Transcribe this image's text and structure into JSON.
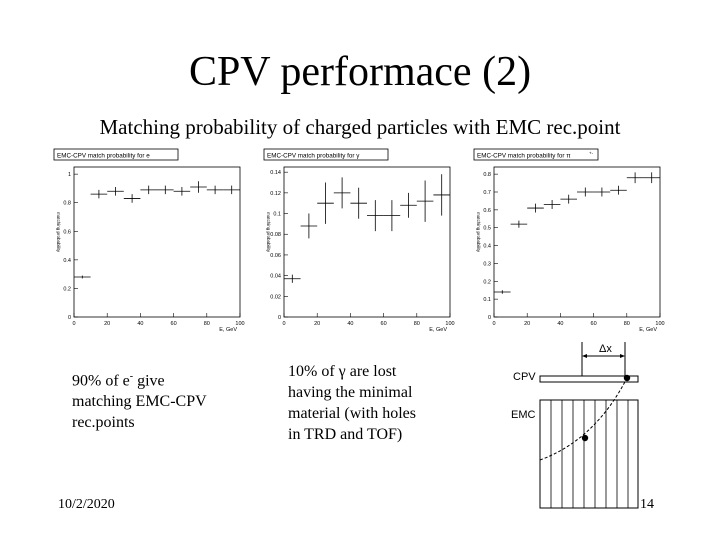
{
  "slide": {
    "title": "CPV performace (2)",
    "subtitle": "Matching probability of charged particles with EMC rec.point",
    "notes": {
      "electron": {
        "line1": "90% of e",
        "sup": "-",
        "line1b": " give",
        "line2": "matching EMC-CPV",
        "line3": "rec.points"
      },
      "gamma": {
        "line1": "10% of γ are lost",
        "line2": "having the minimal",
        "line3": "material (with holes",
        "line4": "in TRD and TOF)"
      }
    },
    "footer": {
      "date": "10/2/2020",
      "page": "14"
    },
    "diagram": {
      "dx_label": "Δx",
      "cpv_label": "CPV",
      "emc_label": "EMC"
    }
  },
  "chart_data": [
    {
      "type": "scatter",
      "title": "EMC-CPV match probability for e",
      "ylabel": "matching probability",
      "xlabel": "E, GeV",
      "xlim": [
        0,
        100
      ],
      "ylim": [
        0,
        1.05
      ],
      "xticks": [
        0,
        20,
        40,
        60,
        80,
        100
      ],
      "yticks": [
        0,
        0.2,
        0.4,
        0.6,
        0.8,
        1
      ],
      "ytick_labels": [
        "0",
        "0.2",
        "0.4",
        "0.6",
        "0.8",
        "1"
      ],
      "x": [
        5,
        15,
        25,
        35,
        45,
        55,
        65,
        75,
        85,
        95
      ],
      "y": [
        0.28,
        0.86,
        0.88,
        0.83,
        0.89,
        0.89,
        0.88,
        0.91,
        0.89,
        0.89
      ],
      "yerr": [
        0.01,
        0.03,
        0.03,
        0.03,
        0.03,
        0.03,
        0.03,
        0.04,
        0.03,
        0.03
      ],
      "xerr": 5
    },
    {
      "type": "scatter",
      "title": "EMC-CPV match probability for  γ",
      "ylabel": "matching probability",
      "xlabel": "E, GeV",
      "xlim": [
        0,
        100
      ],
      "ylim": [
        0,
        0.145
      ],
      "xticks": [
        0,
        20,
        40,
        60,
        80,
        100
      ],
      "yticks": [
        0,
        0.02,
        0.04,
        0.06,
        0.08,
        0.1,
        0.12,
        0.14
      ],
      "ytick_labels": [
        "0",
        "0.02",
        "0.04",
        "0.06",
        "0.08",
        "0.1",
        "0.12",
        "0.14"
      ],
      "x": [
        5,
        15,
        25,
        35,
        45,
        55,
        65,
        75,
        85,
        95
      ],
      "y": [
        0.037,
        0.088,
        0.11,
        0.12,
        0.11,
        0.098,
        0.098,
        0.108,
        0.112,
        0.118
      ],
      "yerr": [
        0.004,
        0.012,
        0.02,
        0.015,
        0.015,
        0.015,
        0.015,
        0.012,
        0.02,
        0.02
      ],
      "xerr": 5
    },
    {
      "type": "scatter",
      "title": "EMC-CPV match probability for  π",
      "title_sup": "+-",
      "ylabel": "matching probability",
      "xlabel": "E, GeV",
      "xlim": [
        0,
        100
      ],
      "ylim": [
        0,
        0.84
      ],
      "xticks": [
        0,
        20,
        40,
        60,
        80,
        100
      ],
      "yticks": [
        0,
        0.1,
        0.2,
        0.3,
        0.4,
        0.5,
        0.6,
        0.7,
        0.8
      ],
      "ytick_labels": [
        "0",
        "0.1",
        "0.2",
        "0.3",
        "0.4",
        "0.5",
        "0.6",
        "0.7",
        "0.8"
      ],
      "x": [
        5,
        15,
        25,
        35,
        45,
        55,
        65,
        75,
        85,
        95
      ],
      "y": [
        0.14,
        0.52,
        0.61,
        0.63,
        0.66,
        0.7,
        0.7,
        0.71,
        0.78,
        0.78
      ],
      "yerr": [
        0.01,
        0.02,
        0.025,
        0.025,
        0.025,
        0.025,
        0.025,
        0.025,
        0.03,
        0.03
      ],
      "xerr": 5
    }
  ]
}
